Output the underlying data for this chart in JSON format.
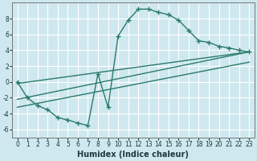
{
  "xlabel": "Humidex (Indice chaleur)",
  "ylabel": "",
  "bg_color": "#cfe8ef",
  "grid_color": "#ffffff",
  "line_color": "#2a7a6a",
  "marker": "+",
  "xlim": [
    -0.5,
    23.5
  ],
  "ylim": [
    -7,
    10
  ],
  "xticks": [
    0,
    1,
    2,
    3,
    4,
    5,
    6,
    7,
    8,
    9,
    10,
    11,
    12,
    13,
    14,
    15,
    16,
    17,
    18,
    19,
    20,
    21,
    22,
    23
  ],
  "yticks": [
    -6,
    -4,
    -2,
    0,
    2,
    4,
    6,
    8
  ],
  "curve_x": [
    0,
    1,
    2,
    3,
    4,
    5,
    6,
    7,
    8,
    9,
    10,
    11,
    12,
    13,
    14,
    15,
    16,
    17,
    18,
    19,
    20,
    21,
    22,
    23
  ],
  "curve_y": [
    0.0,
    -2.0,
    -3.0,
    -3.5,
    -4.5,
    -4.8,
    -5.2,
    -5.5,
    1.0,
    -3.2,
    5.8,
    7.8,
    9.2,
    9.2,
    8.8,
    8.5,
    7.8,
    6.5,
    5.2,
    5.0,
    4.5,
    4.3,
    4.0,
    3.8
  ],
  "line1_x": [
    0,
    23
  ],
  "line1_y": [
    -0.2,
    3.8
  ],
  "line2_x": [
    0,
    23
  ],
  "line2_y": [
    -2.2,
    3.8
  ],
  "line3_x": [
    0,
    23
  ],
  "line3_y": [
    -3.2,
    2.5
  ]
}
